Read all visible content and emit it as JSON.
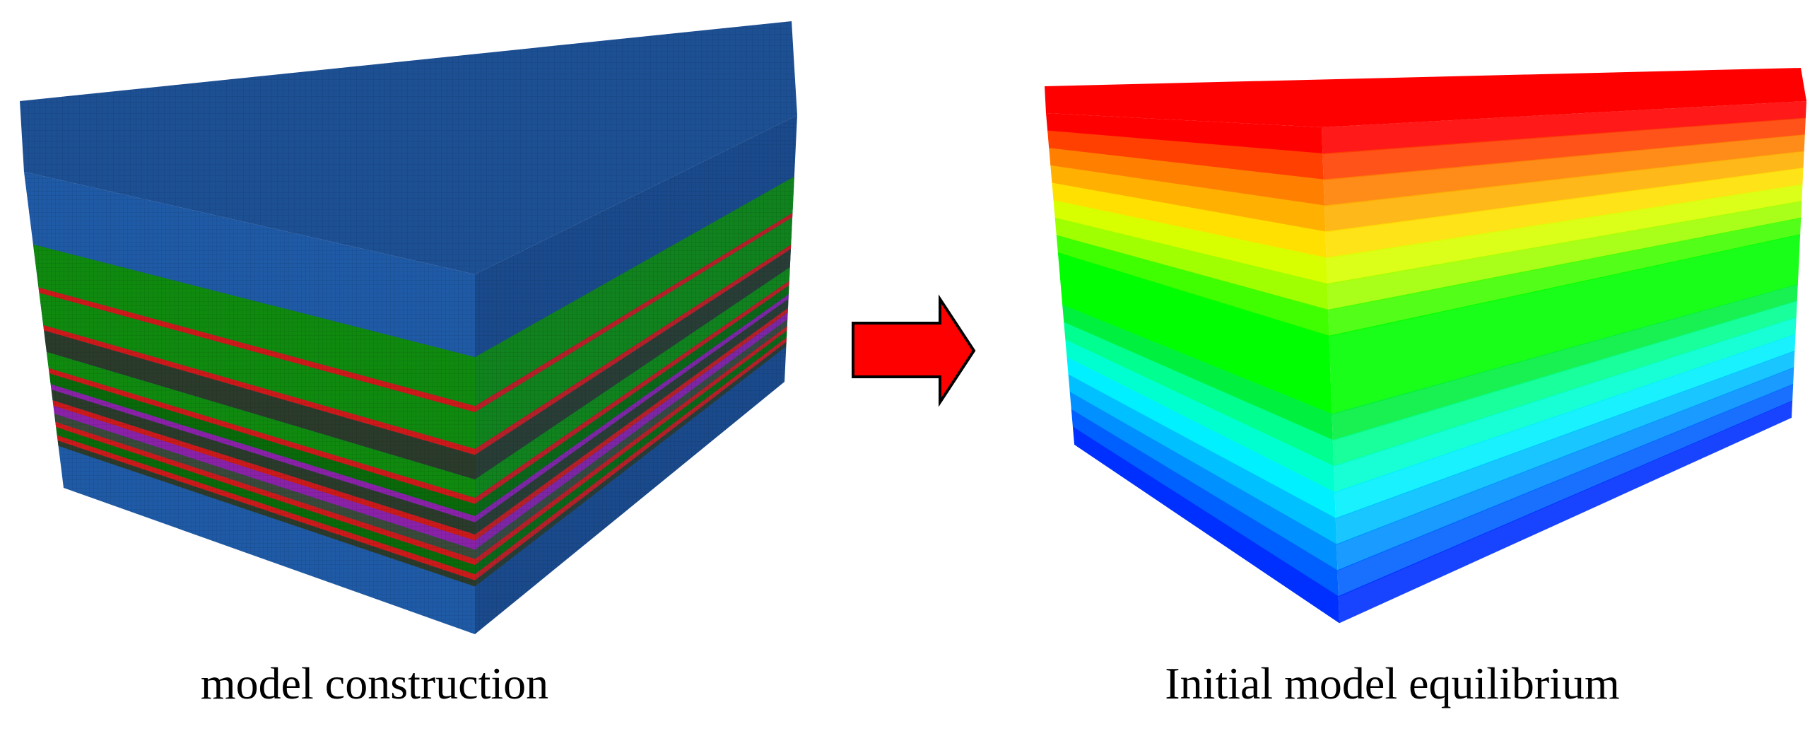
{
  "captions": {
    "left": "model construction",
    "right": "Initial model equilibrium"
  },
  "colors": {
    "mesh_blue": "#1f5aa6",
    "mesh_top": "#1d4f93",
    "mesh_side": "#1a4a8c",
    "arrow_fill": "#ff0000",
    "arrow_stroke": "#000000"
  },
  "left_block": {
    "layer_colors": [
      "#1a4a8c",
      "#0f8a0f",
      "#cc1a1a",
      "#2b3b2b",
      "#8a22a8",
      "#0a6a0a",
      "#3a4a3a"
    ]
  },
  "right_block": {
    "gradient": [
      "#ff0000",
      "#ff4000",
      "#ff8000",
      "#ffb000",
      "#ffe000",
      "#d8ff00",
      "#a0ff00",
      "#40ff00",
      "#00ff00",
      "#00f040",
      "#00ff90",
      "#00ffd0",
      "#00f0ff",
      "#00c0ff",
      "#0090ff",
      "#0060ff",
      "#0030ff"
    ]
  }
}
